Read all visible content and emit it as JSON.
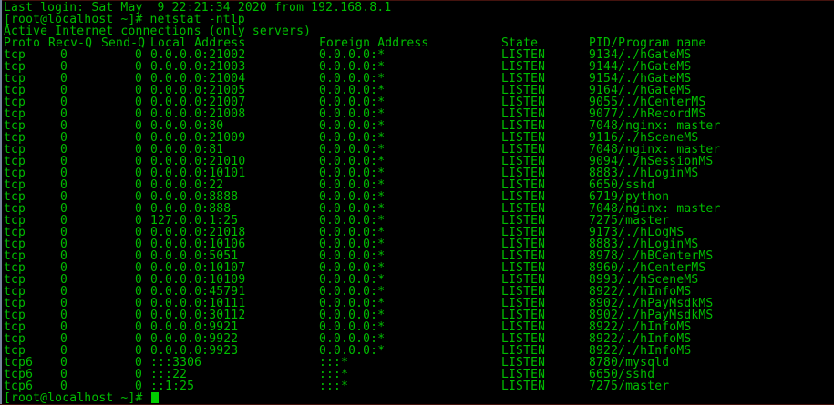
{
  "colors": {
    "background": "#000000",
    "text_green": "#00bd00",
    "cursor_green": "#00cf00",
    "left_edge": "#76849c",
    "top_edge": "#44130e"
  },
  "lines": {
    "last_login": "Last login: Sat May  9 22:21:34 2020 from 192.168.8.1",
    "command_prompt": "[root@localhost ~]# netstat -ntlp",
    "active_connections": "Active Internet connections (only servers)",
    "final_prompt": "[root@localhost ~]# "
  },
  "netstat": {
    "headers": [
      "Proto",
      "Recv-Q",
      "Send-Q",
      "Local Address",
      "Foreign Address",
      "State",
      "PID/Program name"
    ],
    "rows": [
      {
        "proto": "tcp",
        "recv_q": "0",
        "send_q": "0",
        "local": "0.0.0.0:21002",
        "foreign": "0.0.0.0:*",
        "state": "LISTEN",
        "pid_program": "9134/./hGateMS"
      },
      {
        "proto": "tcp",
        "recv_q": "0",
        "send_q": "0",
        "local": "0.0.0.0:21003",
        "foreign": "0.0.0.0:*",
        "state": "LISTEN",
        "pid_program": "9144/./hGateMS"
      },
      {
        "proto": "tcp",
        "recv_q": "0",
        "send_q": "0",
        "local": "0.0.0.0:21004",
        "foreign": "0.0.0.0:*",
        "state": "LISTEN",
        "pid_program": "9154/./hGateMS"
      },
      {
        "proto": "tcp",
        "recv_q": "0",
        "send_q": "0",
        "local": "0.0.0.0:21005",
        "foreign": "0.0.0.0:*",
        "state": "LISTEN",
        "pid_program": "9164/./hGateMS"
      },
      {
        "proto": "tcp",
        "recv_q": "0",
        "send_q": "0",
        "local": "0.0.0.0:21007",
        "foreign": "0.0.0.0:*",
        "state": "LISTEN",
        "pid_program": "9055/./hCenterMS"
      },
      {
        "proto": "tcp",
        "recv_q": "0",
        "send_q": "0",
        "local": "0.0.0.0:21008",
        "foreign": "0.0.0.0:*",
        "state": "LISTEN",
        "pid_program": "9077/./hRecordMS"
      },
      {
        "proto": "tcp",
        "recv_q": "0",
        "send_q": "0",
        "local": "0.0.0.0:80",
        "foreign": "0.0.0.0:*",
        "state": "LISTEN",
        "pid_program": "7048/nginx: master"
      },
      {
        "proto": "tcp",
        "recv_q": "0",
        "send_q": "0",
        "local": "0.0.0.0:21009",
        "foreign": "0.0.0.0:*",
        "state": "LISTEN",
        "pid_program": "9116/./hSceneMS"
      },
      {
        "proto": "tcp",
        "recv_q": "0",
        "send_q": "0",
        "local": "0.0.0.0:81",
        "foreign": "0.0.0.0:*",
        "state": "LISTEN",
        "pid_program": "7048/nginx: master"
      },
      {
        "proto": "tcp",
        "recv_q": "0",
        "send_q": "0",
        "local": "0.0.0.0:21010",
        "foreign": "0.0.0.0:*",
        "state": "LISTEN",
        "pid_program": "9094/./hSessionMS"
      },
      {
        "proto": "tcp",
        "recv_q": "0",
        "send_q": "0",
        "local": "0.0.0.0:10101",
        "foreign": "0.0.0.0:*",
        "state": "LISTEN",
        "pid_program": "8883/./hLoginMS"
      },
      {
        "proto": "tcp",
        "recv_q": "0",
        "send_q": "0",
        "local": "0.0.0.0:22",
        "foreign": "0.0.0.0:*",
        "state": "LISTEN",
        "pid_program": "6650/sshd"
      },
      {
        "proto": "tcp",
        "recv_q": "0",
        "send_q": "0",
        "local": "0.0.0.0:8888",
        "foreign": "0.0.0.0:*",
        "state": "LISTEN",
        "pid_program": "6719/python"
      },
      {
        "proto": "tcp",
        "recv_q": "0",
        "send_q": "0",
        "local": "0.0.0.0:888",
        "foreign": "0.0.0.0:*",
        "state": "LISTEN",
        "pid_program": "7048/nginx: master"
      },
      {
        "proto": "tcp",
        "recv_q": "0",
        "send_q": "0",
        "local": "127.0.0.1:25",
        "foreign": "0.0.0.0:*",
        "state": "LISTEN",
        "pid_program": "7275/master"
      },
      {
        "proto": "tcp",
        "recv_q": "0",
        "send_q": "0",
        "local": "0.0.0.0:21018",
        "foreign": "0.0.0.0:*",
        "state": "LISTEN",
        "pid_program": "9173/./hLogMS"
      },
      {
        "proto": "tcp",
        "recv_q": "0",
        "send_q": "0",
        "local": "0.0.0.0:10106",
        "foreign": "0.0.0.0:*",
        "state": "LISTEN",
        "pid_program": "8883/./hLoginMS"
      },
      {
        "proto": "tcp",
        "recv_q": "0",
        "send_q": "0",
        "local": "0.0.0.0:5051",
        "foreign": "0.0.0.0:*",
        "state": "LISTEN",
        "pid_program": "8978/./hBCenterMS"
      },
      {
        "proto": "tcp",
        "recv_q": "0",
        "send_q": "0",
        "local": "0.0.0.0:10107",
        "foreign": "0.0.0.0:*",
        "state": "LISTEN",
        "pid_program": "8960/./hCenterMS"
      },
      {
        "proto": "tcp",
        "recv_q": "0",
        "send_q": "0",
        "local": "0.0.0.0:10109",
        "foreign": "0.0.0.0:*",
        "state": "LISTEN",
        "pid_program": "8993/./hSceneMS"
      },
      {
        "proto": "tcp",
        "recv_q": "0",
        "send_q": "0",
        "local": "0.0.0.0:45791",
        "foreign": "0.0.0.0:*",
        "state": "LISTEN",
        "pid_program": "8922/./hInfoMS"
      },
      {
        "proto": "tcp",
        "recv_q": "0",
        "send_q": "0",
        "local": "0.0.0.0:10111",
        "foreign": "0.0.0.0:*",
        "state": "LISTEN",
        "pid_program": "8902/./hPayMsdkMS"
      },
      {
        "proto": "tcp",
        "recv_q": "0",
        "send_q": "0",
        "local": "0.0.0.0:30112",
        "foreign": "0.0.0.0:*",
        "state": "LISTEN",
        "pid_program": "8902/./hPayMsdkMS"
      },
      {
        "proto": "tcp",
        "recv_q": "0",
        "send_q": "0",
        "local": "0.0.0.0:9921",
        "foreign": "0.0.0.0:*",
        "state": "LISTEN",
        "pid_program": "8922/./hInfoMS"
      },
      {
        "proto": "tcp",
        "recv_q": "0",
        "send_q": "0",
        "local": "0.0.0.0:9922",
        "foreign": "0.0.0.0:*",
        "state": "LISTEN",
        "pid_program": "8922/./hInfoMS"
      },
      {
        "proto": "tcp",
        "recv_q": "0",
        "send_q": "0",
        "local": "0.0.0.0:9923",
        "foreign": "0.0.0.0:*",
        "state": "LISTEN",
        "pid_program": "8922/./hInfoMS"
      },
      {
        "proto": "tcp6",
        "recv_q": "0",
        "send_q": "0",
        "local": ":::3306",
        "foreign": ":::*",
        "state": "LISTEN",
        "pid_program": "8780/mysqld"
      },
      {
        "proto": "tcp6",
        "recv_q": "0",
        "send_q": "0",
        "local": ":::22",
        "foreign": ":::*",
        "state": "LISTEN",
        "pid_program": "6650/sshd"
      },
      {
        "proto": "tcp6",
        "recv_q": "0",
        "send_q": "0",
        "local": "::1:25",
        "foreign": ":::*",
        "state": "LISTEN",
        "pid_program": "7275/master"
      }
    ]
  }
}
